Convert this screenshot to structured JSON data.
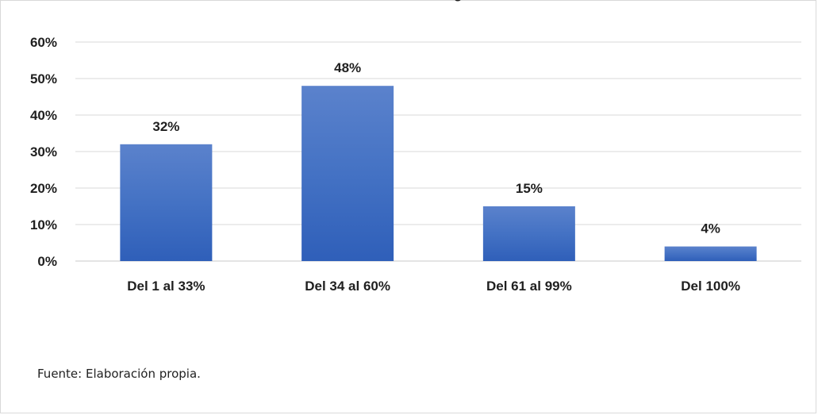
{
  "chart_data": {
    "type": "bar",
    "categories": [
      "Del 1 al 33%",
      "Del 34 al 60%",
      "Del 61 al 99%",
      "Del 100%"
    ],
    "values": [
      0.32,
      0.48,
      0.15,
      0.04
    ],
    "data_labels": [
      "32%",
      "48%",
      "15%",
      "4%"
    ],
    "y_ticks": [
      "0%",
      "10%",
      "20%",
      "30%",
      "40%",
      "50%",
      "60%"
    ],
    "ylim": [
      0,
      0.6
    ],
    "grid": true,
    "bar_color": "#4472c4",
    "bar_color_light": "#5b82cc",
    "bar_color_dark": "#2f5fb9"
  },
  "source": "Fuente: Elaboración propia."
}
